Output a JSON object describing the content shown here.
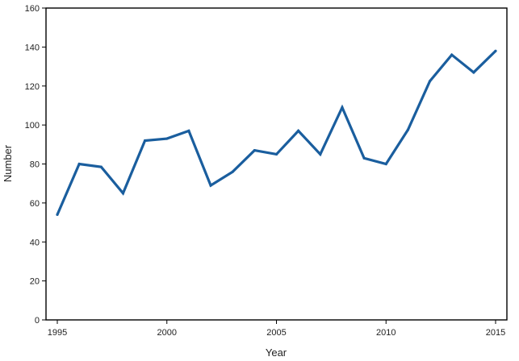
{
  "chart_data": {
    "type": "line",
    "title": "",
    "xlabel": "Year",
    "ylabel": "Number",
    "xlim": [
      1995,
      2015
    ],
    "ylim": [
      0,
      160
    ],
    "x_ticks": [
      1995,
      2000,
      2005,
      2010,
      2015
    ],
    "y_ticks": [
      0,
      20,
      40,
      60,
      80,
      100,
      120,
      140,
      160
    ],
    "grid": false,
    "legend": "none",
    "line_color": "#1a5e9e",
    "series": [
      {
        "x": [
          1995,
          1996,
          1997,
          1998,
          1999,
          2000,
          2001,
          2002,
          2003,
          2004,
          2005,
          2006,
          2007,
          2008,
          2009,
          2010,
          2011,
          2012,
          2013,
          2014,
          2015
        ],
        "values": [
          54,
          80,
          78.5,
          65,
          92,
          93,
          97,
          69,
          76,
          87,
          85,
          97,
          85,
          109,
          83,
          80,
          97.5,
          122.5,
          136,
          127,
          138
        ]
      }
    ]
  }
}
